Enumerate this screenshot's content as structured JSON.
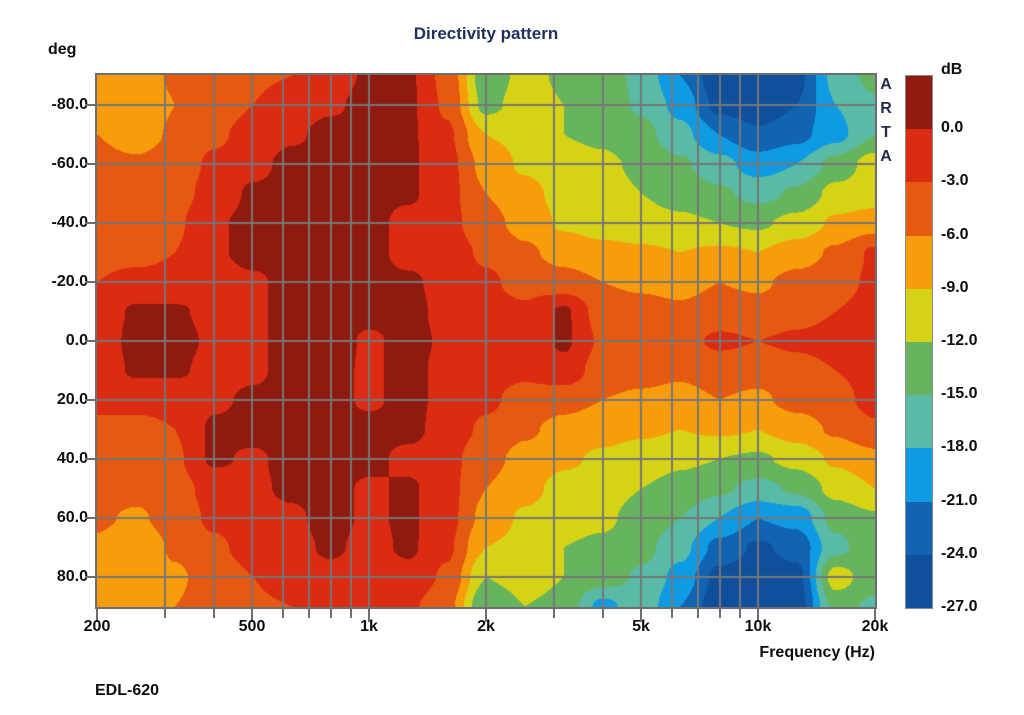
{
  "title": "Directivity pattern",
  "watermark": "ARTA",
  "footer": "EDL-620",
  "axes": {
    "y_label": "deg",
    "x_label": "Frequency (Hz)",
    "y_ticks": [
      {
        "angle": -80,
        "label": "-80.0"
      },
      {
        "angle": -60,
        "label": "-60.0"
      },
      {
        "angle": -40,
        "label": "-40.0"
      },
      {
        "angle": -20,
        "label": "-20.0"
      },
      {
        "angle": 0,
        "label": "0.0"
      },
      {
        "angle": 20,
        "label": "20.0"
      },
      {
        "angle": 40,
        "label": "40.0"
      },
      {
        "angle": 60,
        "label": "60.0"
      },
      {
        "angle": 80,
        "label": "80.0"
      }
    ],
    "x_tick_labels": [
      {
        "freq": 200,
        "label": "200"
      },
      {
        "freq": 500,
        "label": "500"
      },
      {
        "freq": 1000,
        "label": "1k"
      },
      {
        "freq": 2000,
        "label": "2k"
      },
      {
        "freq": 5000,
        "label": "5k"
      },
      {
        "freq": 10000,
        "label": "10k"
      },
      {
        "freq": 20000,
        "label": "20k"
      }
    ],
    "x_tick_freqs": [
      200,
      300,
      400,
      500,
      600,
      700,
      800,
      900,
      1000,
      2000,
      3000,
      4000,
      5000,
      6000,
      7000,
      8000,
      9000,
      10000,
      20000
    ],
    "x_grid_freqs": [
      300,
      400,
      500,
      600,
      700,
      800,
      900,
      1000,
      2000,
      3000,
      4000,
      5000,
      6000,
      7000,
      8000,
      9000,
      10000
    ],
    "y_grid_angles": [
      -80,
      -60,
      -40,
      -20,
      0,
      20,
      40,
      60,
      80
    ]
  },
  "colorbar": {
    "label": "dB",
    "tick_labels": [
      "0.0",
      "-3.0",
      "-6.0",
      "-9.0",
      "-12.0",
      "-15.0",
      "-18.0",
      "-21.0",
      "-24.0",
      "-27.0"
    ],
    "colors": [
      "#8e1a10",
      "#dc2b13",
      "#e65911",
      "#f79d0b",
      "#d6d316",
      "#67b45e",
      "#59baa5",
      "#0f9be3",
      "#1064b2",
      "#0f4f9c"
    ]
  },
  "colors": {
    "background": "#ffffff",
    "title_text": "#21315e",
    "axis_text": "#0d0d0d",
    "watermark_text": "#232c46",
    "grid": "#767676",
    "border": "#6e6e6e"
  },
  "chart_data": {
    "type": "heatmap",
    "title": "Directivity pattern",
    "xlabel": "Frequency (Hz)",
    "ylabel": "deg",
    "x_scale": "log",
    "grid": true,
    "x_range_hz": [
      200,
      20000
    ],
    "y_range_deg": [
      -90,
      90
    ],
    "levels_db": [
      0,
      -3,
      -6,
      -9,
      -12,
      -15,
      -18,
      -21,
      -24,
      -27
    ],
    "x_frequencies_hz": [
      200,
      250,
      315,
      400,
      500,
      630,
      800,
      1000,
      1250,
      1600,
      2000,
      2500,
      3150,
      4000,
      5000,
      6300,
      8000,
      10000,
      12500,
      16000,
      20000
    ],
    "y_angles_deg": [
      -90,
      -80,
      -70,
      -60,
      -50,
      -40,
      -30,
      -20,
      -10,
      0,
      10,
      20,
      30,
      40,
      50,
      60,
      70,
      80,
      90
    ],
    "values_db": [
      [
        -7.5,
        -8,
        -5.5,
        -4,
        -3.5,
        -3,
        -1.5,
        0.5,
        0.5,
        -4,
        -14,
        -11,
        -12.5,
        -13,
        -16,
        -21,
        -26,
        -26.5,
        -25,
        -17,
        -14
      ],
      [
        -7,
        -8.5,
        -6,
        -4.5,
        -3,
        -1.5,
        -0.5,
        1,
        0.5,
        -3.5,
        -13,
        -10.5,
        -12,
        -13,
        -15.5,
        -19,
        -25,
        -26,
        -24,
        -18,
        -15.5
      ],
      [
        -6,
        -7.5,
        -5.5,
        -3.5,
        -2,
        -0.5,
        1,
        1,
        0.5,
        -2.5,
        -9,
        -10,
        -12,
        -12.5,
        -14,
        -17,
        -21,
        -23.5,
        -22,
        -19,
        -15
      ],
      [
        -5,
        -5.5,
        -4.5,
        -2.5,
        -1,
        1,
        1,
        1,
        0.5,
        -2,
        -7,
        -9.5,
        -11,
        -11.5,
        -12.5,
        -14.5,
        -17,
        -19.5,
        -18,
        -14,
        -10.5
      ],
      [
        -4.5,
        -5,
        -4,
        -2,
        0.5,
        1,
        1,
        1,
        0.5,
        -2,
        -6,
        -8,
        -10,
        -11,
        -12,
        -13,
        -14.5,
        -16,
        -14.5,
        -11,
        -10.5
      ],
      [
        -4,
        -4.5,
        -3.5,
        -0.5,
        1,
        1,
        1,
        1,
        -1,
        -2,
        -5,
        -7,
        -9.5,
        -10.5,
        -11,
        -11.5,
        -12,
        -12.5,
        -11,
        -8.5,
        -7.5
      ],
      [
        -3.5,
        -3.5,
        -3,
        -0.5,
        1,
        1,
        1,
        1,
        -1,
        -1.5,
        -3.5,
        -5.5,
        -7,
        -8,
        -8.5,
        -9,
        -8.5,
        -9,
        -7.5,
        -5.5,
        -2.5
      ],
      [
        -3,
        -2.5,
        -2.5,
        -1.5,
        -0.5,
        1,
        1,
        1,
        0.5,
        -1,
        -2.5,
        -4,
        -5,
        -6,
        -6.5,
        -7,
        -6,
        -6.5,
        -5,
        -4,
        -2.5
      ],
      [
        -2,
        0.5,
        0.5,
        -1,
        -0.5,
        1,
        1,
        1,
        1,
        -1,
        -2,
        -2.5,
        0.5,
        -4.5,
        -5,
        -5.5,
        -4.5,
        -5,
        -4,
        -3,
        -2
      ],
      [
        -2,
        1,
        1,
        -0.5,
        -0.5,
        1,
        1.5,
        -0.5,
        1,
        -0.5,
        -1.5,
        -2,
        0.5,
        -3.5,
        -3.5,
        -4,
        -2.5,
        -3,
        -2.5,
        -2,
        -1.5
      ],
      [
        -2,
        0.5,
        0.5,
        -1,
        -0.5,
        1,
        1,
        -0.5,
        1,
        -1,
        -2,
        -2.5,
        -1,
        -4.5,
        -5,
        -5.5,
        -4.5,
        -5,
        -4,
        -3,
        -2
      ],
      [
        -2.5,
        -2.5,
        -2.5,
        -0.5,
        0.5,
        1,
        1,
        -0.5,
        1,
        -1,
        -2.5,
        -4,
        -5,
        -6,
        -6.5,
        -7,
        -6,
        -6.5,
        -5,
        -4,
        -2
      ],
      [
        -3.5,
        -3.5,
        -3,
        0.5,
        1,
        1,
        1,
        1,
        1,
        -1.5,
        -3.5,
        -5.5,
        -7,
        -8,
        -8.5,
        -9,
        -8.5,
        -9,
        -7.5,
        -5.5,
        -3.5
      ],
      [
        -4,
        -4.5,
        -3.5,
        0.5,
        -0.5,
        1,
        1,
        1,
        -1,
        -2,
        -5,
        -7,
        -8.5,
        -9.5,
        -10.5,
        -11.5,
        -12,
        -12.5,
        -11,
        -8.5,
        -7
      ],
      [
        -4.5,
        -5,
        -4,
        -2,
        -0.5,
        0.5,
        1,
        -0.5,
        0.5,
        -2,
        -6,
        -8,
        -10,
        -11,
        -12,
        -13,
        -14.5,
        -16,
        -14.5,
        -11,
        -9
      ],
      [
        -5.5,
        -6.5,
        -4.5,
        -2.5,
        -1,
        -0.5,
        1,
        -0.5,
        0.5,
        -2,
        -7,
        -9.5,
        -11,
        -11.5,
        -13,
        -15,
        -18,
        -21,
        -20,
        -14,
        -12.5
      ],
      [
        -6.5,
        -8.5,
        -5.5,
        -3.5,
        -2,
        -1,
        0.5,
        -1,
        0.5,
        -2.5,
        -9,
        -10,
        -12,
        -12.5,
        -14,
        -17,
        -22,
        -24.5,
        -23,
        -16,
        -12.5
      ],
      [
        -7.5,
        -8.5,
        -6.5,
        -4.5,
        -3,
        -1.5,
        -1,
        -1.5,
        -1,
        -3.5,
        -12,
        -10.5,
        -12,
        -13.5,
        -15.5,
        -19,
        -25,
        -26,
        -25,
        -10.5,
        -14
      ],
      [
        -8,
        -8.5,
        -6,
        -4.5,
        -3.5,
        -3,
        -2.5,
        -2,
        -2.5,
        -5,
        -15,
        -12,
        -13,
        -19,
        -16,
        -21,
        -26,
        -26.5,
        -25.5,
        -14,
        -15.5
      ]
    ]
  }
}
